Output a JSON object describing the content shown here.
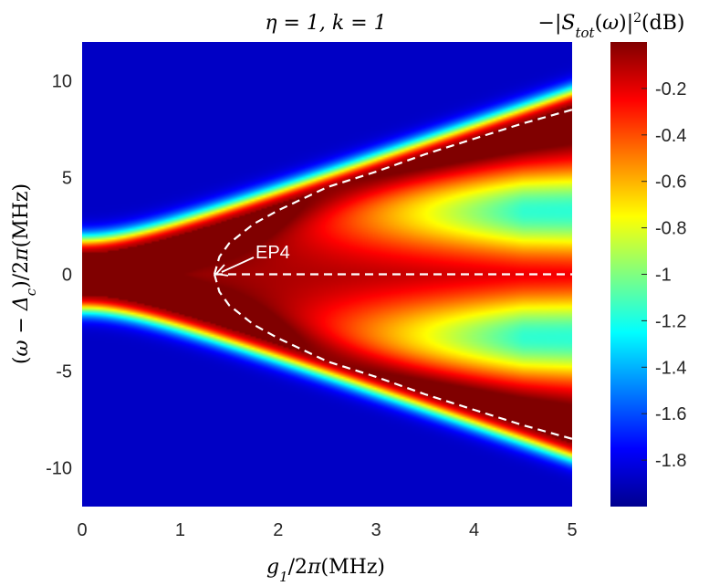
{
  "chart_data": {
    "type": "heatmap",
    "title": "η = 1, k = 1",
    "xlabel": "g₁/2π(MHz)",
    "ylabel": "(ω − Δ_c)/2π(MHz)",
    "colorbar_label": "−|S_tot(ω)|²(dB)",
    "xlim": [
      0,
      5
    ],
    "ylim": [
      -12,
      12
    ],
    "x_ticks": [
      "0",
      "1",
      "2",
      "3",
      "4",
      "5"
    ],
    "y_ticks": [
      "-10",
      "-5",
      "0",
      "5",
      "10"
    ],
    "colorbar_range": [
      -2.0,
      0.0
    ],
    "colorbar_ticks": [
      "-1.8",
      "-1.6",
      "-1.4",
      "-1.2",
      "-1",
      "-0.8",
      "-0.6",
      "-0.4",
      "-0.2"
    ],
    "colormap": "jet",
    "dashed_curves": [
      {
        "x": [
          1.35,
          1.4,
          1.5,
          1.75,
          2,
          2.5,
          3,
          3.5,
          4,
          4.5,
          5
        ],
        "y_upper": [
          0,
          0.9,
          1.6,
          2.6,
          3.3,
          4.5,
          5.3,
          6.2,
          7.0,
          7.8,
          8.5
        ]
      },
      {
        "x": [
          1.35,
          5
        ],
        "y": [
          0,
          0
        ]
      }
    ],
    "annotation": {
      "text": "EP4",
      "x": 1.35,
      "y": 0
    }
  }
}
